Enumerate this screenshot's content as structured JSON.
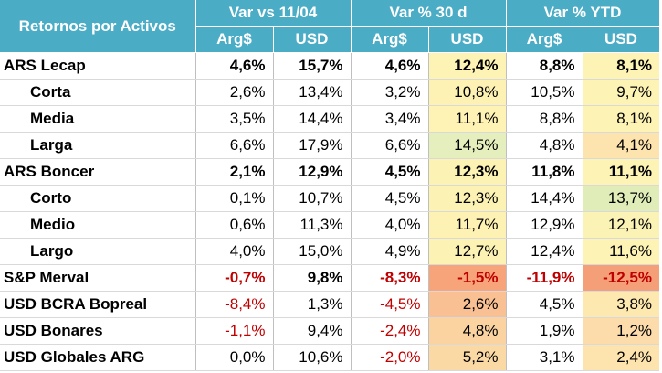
{
  "header": {
    "title": "Retornos por Activos",
    "groups": [
      "Var vs 11/04",
      "Var % 30 d",
      "Var % YTD"
    ],
    "subcols": [
      "Arg$",
      "USD",
      "Arg$",
      "USD",
      "Arg$",
      "USD"
    ]
  },
  "rows": [
    {
      "label": "ARS Lecap",
      "v": [
        "4,6%",
        "15,7%",
        "4,6%",
        "12,4%",
        "8,8%",
        "8,1%"
      ]
    },
    {
      "label": "Corta",
      "v": [
        "2,6%",
        "13,4%",
        "3,2%",
        "10,8%",
        "10,5%",
        "9,7%"
      ]
    },
    {
      "label": "Media",
      "v": [
        "3,5%",
        "14,4%",
        "3,4%",
        "11,1%",
        "8,8%",
        "8,1%"
      ]
    },
    {
      "label": "Larga",
      "v": [
        "6,6%",
        "17,9%",
        "6,6%",
        "14,5%",
        "4,8%",
        "4,1%"
      ]
    },
    {
      "label": "ARS Boncer",
      "v": [
        "2,1%",
        "12,9%",
        "4,5%",
        "12,3%",
        "11,8%",
        "11,1%"
      ]
    },
    {
      "label": "Corto",
      "v": [
        "0,1%",
        "10,7%",
        "4,5%",
        "12,3%",
        "14,4%",
        "13,7%"
      ]
    },
    {
      "label": "Medio",
      "v": [
        "0,6%",
        "11,3%",
        "4,0%",
        "11,7%",
        "12,9%",
        "12,1%"
      ]
    },
    {
      "label": "Largo",
      "v": [
        "4,0%",
        "15,0%",
        "4,9%",
        "12,7%",
        "12,4%",
        "11,6%"
      ]
    },
    {
      "label": "S&P Merval",
      "v": [
        "-0,7%",
        "9,8%",
        "-8,3%",
        "-1,5%",
        "-11,9%",
        "-12,5%"
      ]
    },
    {
      "label": "USD BCRA Bopreal",
      "v": [
        "-8,4%",
        "1,3%",
        "-4,5%",
        "2,6%",
        "4,5%",
        "3,8%"
      ]
    },
    {
      "label": "USD Bonares",
      "v": [
        "-1,1%",
        "9,4%",
        "-2,4%",
        "4,8%",
        "1,9%",
        "1,2%"
      ]
    },
    {
      "label": "USD Globales ARG",
      "v": [
        "0,0%",
        "10,6%",
        "-2,0%",
        "5,2%",
        "3,1%",
        "2,4%"
      ]
    }
  ],
  "heat_colors": {
    "col4": [
      "#fcf3b4",
      "#fdf2b3",
      "#fef2b4",
      "#e5efbd",
      "#fcf2b4",
      "#fcf2b4",
      "#fef1b4",
      "#fbf2b4",
      "#f7a47a",
      "#f9c193",
      "#fad3a1",
      "#fbd9a5"
    ],
    "col6": [
      "#fdf3b5",
      "#fdf3b5",
      "#fdf3b5",
      "#fde3ad",
      "#fdf3b5",
      "#e0edb9",
      "#fbf3b5",
      "#fdf3b5",
      "#f59f79",
      "#fde8af",
      "#fbdcaa",
      "#fde3ad"
    ]
  }
}
